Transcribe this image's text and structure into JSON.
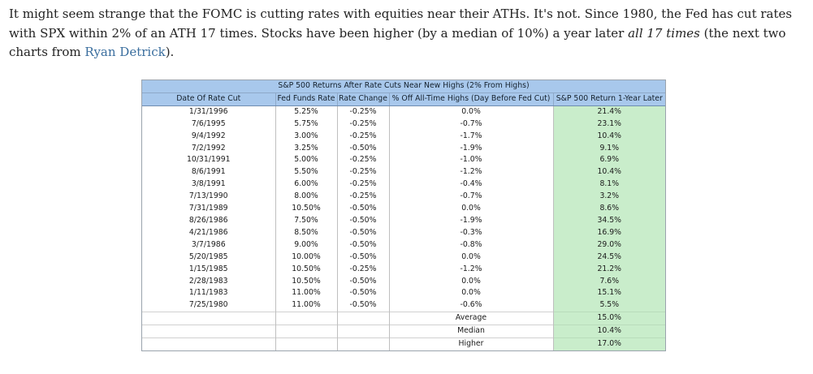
{
  "paragraph": {
    "part1": "It might seem strange that the FOMC is cutting rates with equities near their ATHs. It's not.  Since 1980, the Fed has cut rates with SPX within 2% of an ATH 17 times. Stocks have been higher (by a median of 10%) a year later ",
    "emphasis": "all 17 times",
    "part2": " (the next two charts from ",
    "link": "Ryan Detrick",
    "part3": ")."
  },
  "table": {
    "title": "S&P 500 Returns After Rate Cuts Near New Highs (2% From Highs)",
    "headers": [
      "Date Of Rate Cut",
      "Fed Funds Rate",
      "Rate Change",
      "% Off All-Time Highs (Day Before Fed Cut)",
      "S&P 500 Return 1-Year Later"
    ],
    "rows": [
      [
        "1/31/1996",
        "5.25%",
        "-0.25%",
        "0.0%",
        "21.4%"
      ],
      [
        "7/6/1995",
        "5.75%",
        "-0.25%",
        "-0.7%",
        "23.1%"
      ],
      [
        "9/4/1992",
        "3.00%",
        "-0.25%",
        "-1.7%",
        "10.4%"
      ],
      [
        "7/2/1992",
        "3.25%",
        "-0.50%",
        "-1.9%",
        "9.1%"
      ],
      [
        "10/31/1991",
        "5.00%",
        "-0.25%",
        "-1.0%",
        "6.9%"
      ],
      [
        "8/6/1991",
        "5.50%",
        "-0.25%",
        "-1.2%",
        "10.4%"
      ],
      [
        "3/8/1991",
        "6.00%",
        "-0.25%",
        "-0.4%",
        "8.1%"
      ],
      [
        "7/13/1990",
        "8.00%",
        "-0.25%",
        "-0.7%",
        "3.2%"
      ],
      [
        "7/31/1989",
        "10.50%",
        "-0.50%",
        "0.0%",
        "8.6%"
      ],
      [
        "8/26/1986",
        "7.50%",
        "-0.50%",
        "-1.9%",
        "34.5%"
      ],
      [
        "4/21/1986",
        "8.50%",
        "-0.50%",
        "-0.3%",
        "16.9%"
      ],
      [
        "3/7/1986",
        "9.00%",
        "-0.50%",
        "-0.8%",
        "29.0%"
      ],
      [
        "5/20/1985",
        "10.00%",
        "-0.50%",
        "0.0%",
        "24.5%"
      ],
      [
        "1/15/1985",
        "10.50%",
        "-0.25%",
        "-1.2%",
        "21.2%"
      ],
      [
        "2/28/1983",
        "10.50%",
        "-0.50%",
        "0.0%",
        "7.6%"
      ],
      [
        "1/11/1983",
        "11.00%",
        "-0.50%",
        "0.0%",
        "15.1%"
      ],
      [
        "7/25/1980",
        "11.00%",
        "-0.50%",
        "-0.6%",
        "5.5%"
      ]
    ],
    "summary": [
      {
        "label": "Average",
        "value": "15.0%"
      },
      {
        "label": "Median",
        "value": "10.4%"
      },
      {
        "label": "Higher",
        "value": "17.0%"
      }
    ],
    "colors": {
      "header_bg": "#a8c8ec",
      "return_col_bg": "#c9edcb",
      "link": "#3a6e9e"
    }
  }
}
